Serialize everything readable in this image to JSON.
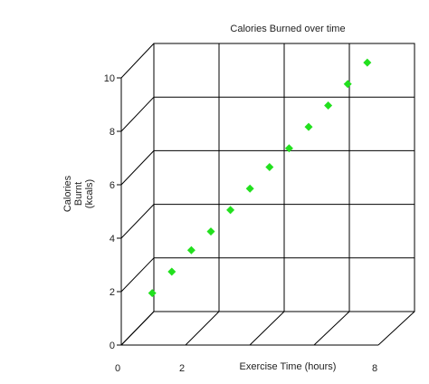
{
  "chart_data": {
    "type": "scatter",
    "title": "Calories Burned over time",
    "xlabel": "Exercise Time (hours)",
    "ylabel": [
      "Calories",
      "Burnt",
      "(kcals)"
    ],
    "x_tick_labels": [
      {
        "value": 0,
        "label": "0"
      },
      {
        "value": 2,
        "label": "2"
      },
      {
        "value": 8,
        "label": "8"
      }
    ],
    "y_ticks": [
      0,
      2,
      4,
      6,
      8,
      10
    ],
    "xlim": [
      0,
      8
    ],
    "ylim": [
      0,
      10
    ],
    "grid": true,
    "marker": "diamond",
    "marker_color": "#22e01e",
    "points": [
      {
        "x": 0.6,
        "y": 1.5
      },
      {
        "x": 1.2,
        "y": 2.3
      },
      {
        "x": 1.8,
        "y": 3.1
      },
      {
        "x": 2.4,
        "y": 3.8
      },
      {
        "x": 3.0,
        "y": 4.6
      },
      {
        "x": 3.6,
        "y": 5.4
      },
      {
        "x": 4.2,
        "y": 6.2
      },
      {
        "x": 4.8,
        "y": 6.9
      },
      {
        "x": 5.4,
        "y": 7.7
      },
      {
        "x": 6.0,
        "y": 8.5
      },
      {
        "x": 6.6,
        "y": 9.3
      },
      {
        "x": 7.2,
        "y": 10.1
      }
    ]
  }
}
